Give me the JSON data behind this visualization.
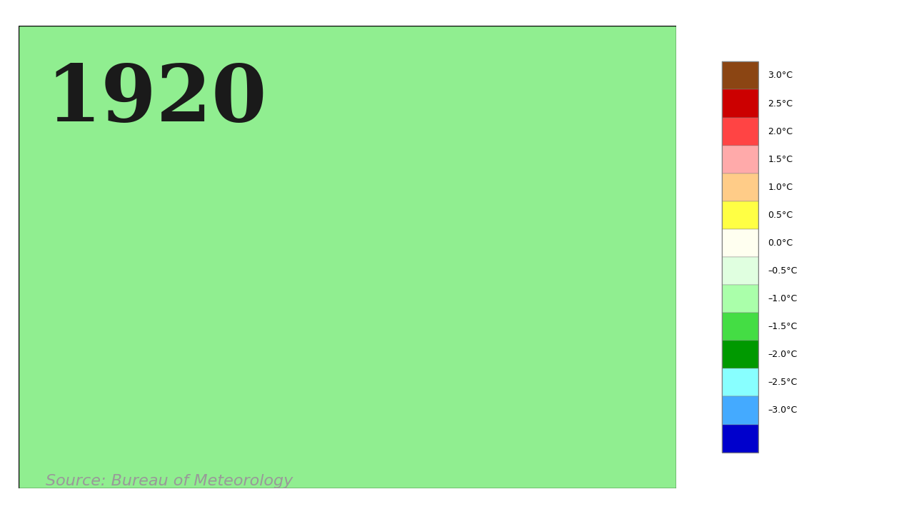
{
  "year": "1920",
  "source_text": "Source: Bureau of Meteorology",
  "background_color": "#ffffff",
  "colorbar_labels": [
    "3.0°C",
    "2.5°C",
    "2.0°C",
    "1.5°C",
    "1.0°C",
    "0.5°C",
    "0.0°C",
    "-0.5°C",
    "-1.0°C",
    "-1.5°C",
    "-2.0°C",
    "-2.5°C",
    "-3.0°C"
  ],
  "colorbar_colors": [
    "#8B4513",
    "#ff0000",
    "#ff4444",
    "#ffaaaa",
    "#ffaa55",
    "#ffff00",
    "#ffffcc",
    "#ccffcc",
    "#66ff66",
    "#00cc00",
    "#00ffff",
    "#00aaff",
    "#8888ff",
    "#0000ff"
  ],
  "colorbar_boundaries": [
    3.5,
    3.0,
    2.5,
    2.0,
    1.5,
    1.0,
    0.5,
    0.0,
    -0.5,
    -1.0,
    -1.5,
    -2.0,
    -2.5,
    -3.0
  ],
  "map_dominant_color": "#90ee90",
  "year_fontsize": 80,
  "source_fontsize": 16,
  "year_color": "#1a1a1a",
  "source_color": "#999999"
}
